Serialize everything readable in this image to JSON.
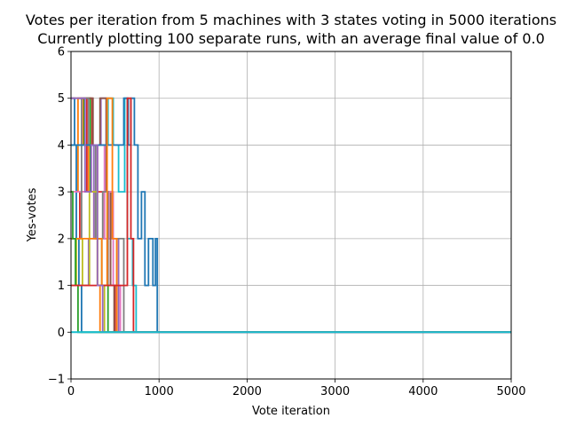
{
  "chart_data": {
    "type": "line",
    "title": "Votes per iteration from 5 machines with 3 states voting in 5000 iterations",
    "subtitle": "Currently plotting 100 separate runs, with an average final value of 0.0",
    "xlabel": "Vote iteration",
    "ylabel": "Yes-votes",
    "xlim": [
      0,
      5000
    ],
    "ylim": [
      -1,
      6
    ],
    "xticks": [
      0,
      1000,
      2000,
      3000,
      4000,
      5000
    ],
    "yticks": [
      -1,
      0,
      1,
      2,
      3,
      4,
      5,
      6
    ],
    "grid": true,
    "legend": "none",
    "series_count": 100,
    "final_value": 0,
    "series": [
      {
        "x": [
          0,
          40,
          40,
          60,
          60,
          90,
          90,
          120,
          120,
          150,
          150
        ],
        "y": [
          5,
          5,
          4,
          4,
          2,
          2,
          1,
          1,
          0,
          0,
          0
        ]
      },
      {
        "x": [
          0,
          80,
          80,
          140,
          140,
          200,
          200,
          260,
          260,
          300,
          300,
          330,
          330
        ],
        "y": [
          3,
          3,
          5,
          5,
          4,
          4,
          3,
          3,
          2,
          2,
          1,
          1,
          0
        ]
      },
      {
        "x": [
          0,
          150,
          150,
          220,
          220,
          280,
          280,
          350,
          350,
          420,
          420
        ],
        "y": [
          4,
          4,
          5,
          5,
          3,
          3,
          2,
          2,
          1,
          1,
          0
        ]
      },
      {
        "x": [
          0,
          100,
          100,
          180,
          180,
          240,
          240,
          300,
          300,
          380,
          380,
          450,
          450,
          500,
          500
        ],
        "y": [
          2,
          2,
          3,
          3,
          5,
          5,
          4,
          4,
          3,
          3,
          2,
          2,
          1,
          1,
          0
        ]
      },
      {
        "x": [
          0,
          200,
          200,
          260,
          260,
          340,
          340,
          400,
          400,
          470,
          470,
          540,
          540
        ],
        "y": [
          1,
          1,
          2,
          2,
          4,
          4,
          5,
          5,
          3,
          3,
          2,
          2,
          0
        ]
      },
      {
        "x": [
          0,
          250,
          250,
          330,
          330,
          400,
          400,
          450,
          450,
          490,
          490
        ],
        "y": [
          5,
          5,
          4,
          4,
          5,
          5,
          3,
          3,
          1,
          1,
          0
        ]
      },
      {
        "x": [
          0,
          300,
          300,
          380,
          380,
          430,
          430,
          480,
          480,
          560,
          560
        ],
        "y": [
          3,
          3,
          4,
          4,
          2,
          2,
          3,
          3,
          1,
          1,
          0
        ]
      },
      {
        "x": [
          0,
          120,
          120,
          200,
          200,
          280,
          280,
          360,
          360,
          420,
          420,
          520,
          520,
          600,
          600
        ],
        "y": [
          2,
          2,
          5,
          5,
          4,
          4,
          2,
          2,
          3,
          3,
          1,
          1,
          2,
          2,
          0
        ]
      },
      {
        "x": [
          0,
          60,
          60,
          130,
          130,
          210,
          210,
          300,
          300,
          380,
          380
        ],
        "y": [
          1,
          1,
          2,
          2,
          1,
          1,
          3,
          3,
          1,
          1,
          0
        ]
      },
      {
        "x": [
          0,
          420,
          420,
          480,
          480,
          540,
          540,
          610,
          610,
          640,
          640,
          700,
          700,
          740,
          740
        ],
        "y": [
          4,
          4,
          5,
          5,
          4,
          4,
          3,
          3,
          5,
          5,
          2,
          2,
          1,
          1,
          0
        ]
      },
      {
        "x": [
          0,
          600,
          600,
          650,
          650,
          680,
          680,
          720,
          720,
          760,
          760,
          800,
          800,
          840,
          840,
          880,
          880,
          930,
          930,
          960,
          960,
          980,
          980
        ],
        "y": [
          4,
          4,
          5,
          5,
          4,
          4,
          5,
          5,
          4,
          4,
          2,
          2,
          3,
          3,
          1,
          1,
          2,
          2,
          1,
          1,
          2,
          2,
          0
        ]
      },
      {
        "x": [
          0,
          350,
          350,
          410,
          410,
          470,
          470,
          520,
          520
        ],
        "y": [
          2,
          2,
          1,
          1,
          5,
          5,
          2,
          2,
          0
        ]
      },
      {
        "x": [
          0,
          20,
          20,
          50,
          50,
          80,
          80
        ],
        "y": [
          3,
          3,
          2,
          2,
          1,
          1,
          0
        ]
      },
      {
        "x": [
          0,
          640,
          640,
          680,
          680,
          710,
          710
        ],
        "y": [
          1,
          1,
          5,
          5,
          2,
          2,
          0
        ]
      },
      {
        "x": [
          0,
          160,
          160,
          230,
          230,
          300,
          300,
          360,
          360
        ],
        "y": [
          5,
          5,
          3,
          3,
          4,
          4,
          1,
          1,
          0
        ]
      }
    ],
    "colors": [
      "#1f77b4",
      "#ff7f0e",
      "#2ca02c",
      "#d62728",
      "#9467bd",
      "#8c564b",
      "#e377c2",
      "#7f7f7f",
      "#bcbd22",
      "#17becf"
    ]
  }
}
